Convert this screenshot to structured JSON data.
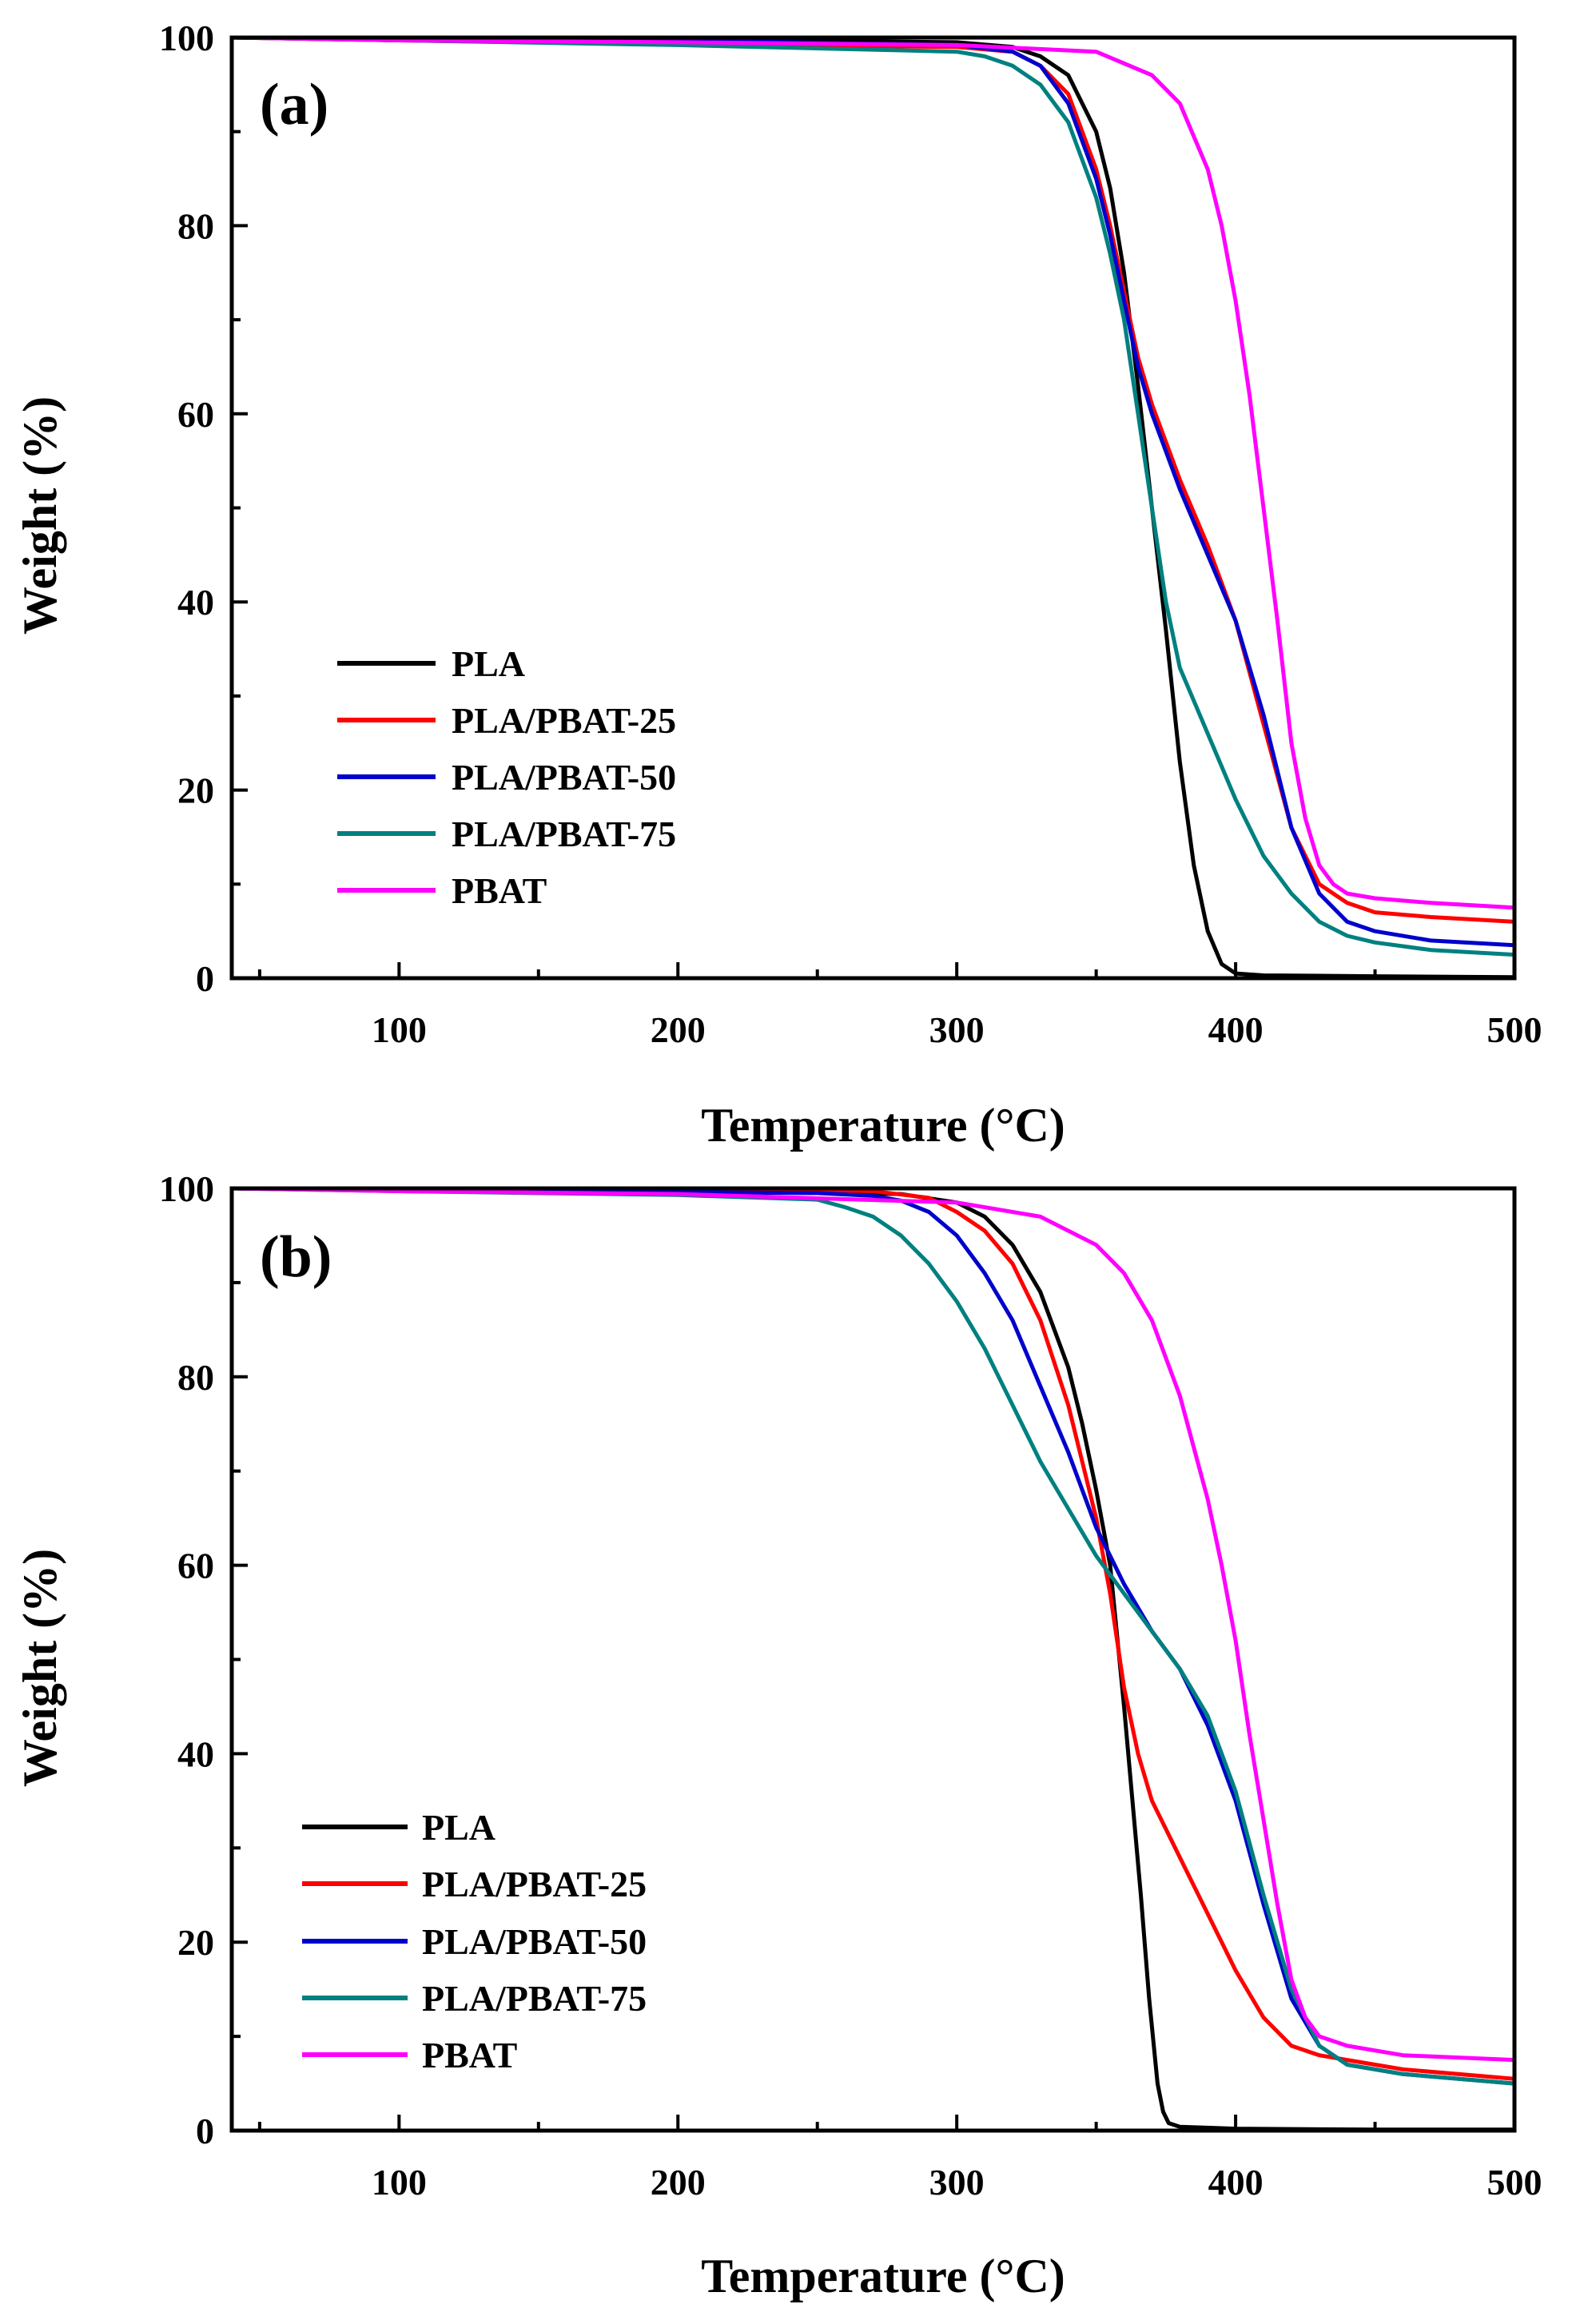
{
  "chart_data": [
    {
      "type": "line",
      "panel_label": "(a)",
      "xlabel": "Temperature (°C)",
      "ylabel": "Weight (%)",
      "xlim": [
        40,
        500
      ],
      "ylim": [
        0,
        100
      ],
      "xticks": [
        100,
        200,
        300,
        400,
        500
      ],
      "yticks": [
        0,
        20,
        40,
        60,
        80,
        100
      ],
      "grid": false,
      "legend_position": "lower-left",
      "series": [
        {
          "name": "PLA",
          "color": "#000000",
          "x": [
            40,
            100,
            200,
            300,
            320,
            330,
            340,
            350,
            355,
            360,
            365,
            370,
            375,
            380,
            385,
            390,
            395,
            400,
            410,
            450,
            500
          ],
          "y": [
            100,
            99.9,
            99.8,
            99.5,
            99,
            98,
            96,
            90,
            84,
            75,
            63,
            50,
            37,
            23,
            12,
            5,
            1.5,
            0.5,
            0.3,
            0.2,
            0.1
          ]
        },
        {
          "name": "PLA/PBAT-25",
          "color": "#ff0000",
          "x": [
            40,
            100,
            200,
            300,
            320,
            330,
            340,
            350,
            355,
            360,
            365,
            370,
            375,
            380,
            390,
            400,
            410,
            420,
            430,
            440,
            450,
            470,
            500
          ],
          "y": [
            100,
            99.7,
            99.3,
            99,
            98.5,
            97,
            94,
            86,
            80,
            73,
            66,
            61,
            57,
            53,
            46,
            38,
            27,
            16,
            10,
            8,
            7,
            6.5,
            6
          ]
        },
        {
          "name": "PLA/PBAT-50",
          "color": "#0000cc",
          "x": [
            40,
            100,
            200,
            300,
            320,
            330,
            340,
            350,
            355,
            360,
            365,
            370,
            375,
            380,
            390,
            400,
            410,
            420,
            430,
            440,
            450,
            470,
            500
          ],
          "y": [
            100,
            99.9,
            99.7,
            99.2,
            98.5,
            97,
            93,
            85,
            79,
            72,
            65,
            60,
            56,
            52,
            45,
            38,
            28,
            16,
            9,
            6,
            5,
            4,
            3.5
          ]
        },
        {
          "name": "PLA/PBAT-75",
          "color": "#008080",
          "x": [
            40,
            100,
            200,
            300,
            310,
            320,
            330,
            340,
            350,
            355,
            360,
            365,
            370,
            375,
            380,
            390,
            400,
            410,
            420,
            430,
            440,
            450,
            470,
            500
          ],
          "y": [
            100,
            99.7,
            99.2,
            98.5,
            98,
            97,
            95,
            91,
            83,
            77,
            70,
            60,
            50,
            40,
            33,
            26,
            19,
            13,
            9,
            6,
            4.5,
            3.8,
            3,
            2.5
          ]
        },
        {
          "name": "PBAT",
          "color": "#ff00ff",
          "x": [
            40,
            100,
            200,
            300,
            350,
            370,
            380,
            390,
            395,
            400,
            405,
            410,
            415,
            420,
            425,
            430,
            435,
            440,
            450,
            470,
            500
          ],
          "y": [
            100,
            99.7,
            99.5,
            99.2,
            98.5,
            96,
            93,
            86,
            80,
            72,
            62,
            50,
            38,
            25,
            17,
            12,
            10,
            9,
            8.5,
            8,
            7.5
          ]
        }
      ]
    },
    {
      "type": "line",
      "panel_label": "(b)",
      "xlabel": "Temperature (°C)",
      "ylabel": "Weight (%)",
      "xlim": [
        40,
        500
      ],
      "ylim": [
        0,
        100
      ],
      "xticks": [
        100,
        200,
        300,
        400,
        500
      ],
      "yticks": [
        0,
        20,
        40,
        60,
        80,
        100
      ],
      "grid": false,
      "legend_position": "lower-left",
      "series": [
        {
          "name": "PLA",
          "color": "#000000",
          "x": [
            40,
            100,
            200,
            280,
            300,
            310,
            320,
            330,
            340,
            345,
            350,
            355,
            360,
            363,
            366,
            369,
            372,
            374,
            376,
            380,
            400,
            450,
            500
          ],
          "y": [
            100,
            99.9,
            99.8,
            99.4,
            98.5,
            97,
            94,
            89,
            81,
            75,
            68,
            60,
            45,
            35,
            25,
            14,
            5,
            2,
            0.8,
            0.4,
            0.2,
            0.1,
            0.1
          ]
        },
        {
          "name": "PLA/PBAT-25",
          "color": "#ff0000",
          "x": [
            40,
            100,
            200,
            250,
            270,
            290,
            300,
            310,
            320,
            330,
            340,
            350,
            355,
            360,
            365,
            370,
            380,
            390,
            400,
            410,
            420,
            430,
            440,
            460,
            500
          ],
          "y": [
            100,
            99.8,
            99.8,
            99.8,
            99.7,
            99,
            97.5,
            95.5,
            92,
            86,
            77,
            65,
            57,
            47,
            40,
            35,
            29,
            23,
            17,
            12,
            9,
            8,
            7.5,
            6.5,
            5.5
          ]
        },
        {
          "name": "PLA/PBAT-50",
          "color": "#0000cc",
          "x": [
            40,
            100,
            200,
            250,
            270,
            280,
            290,
            300,
            310,
            320,
            330,
            340,
            350,
            360,
            370,
            380,
            390,
            400,
            410,
            420,
            430,
            440,
            460,
            500
          ],
          "y": [
            100,
            99.8,
            99.6,
            99.5,
            99.2,
            98.7,
            97.5,
            95,
            91,
            86,
            79,
            72,
            64,
            58,
            53,
            49,
            43,
            35,
            24,
            14,
            9,
            7,
            6,
            5
          ]
        },
        {
          "name": "PLA/PBAT-75",
          "color": "#008080",
          "x": [
            40,
            100,
            200,
            250,
            260,
            270,
            280,
            290,
            300,
            310,
            320,
            330,
            340,
            350,
            360,
            370,
            380,
            390,
            400,
            410,
            420,
            430,
            440,
            460,
            500
          ],
          "y": [
            100,
            99.7,
            99.3,
            98.8,
            98,
            97,
            95,
            92,
            88,
            83,
            77,
            71,
            66,
            61,
            57,
            53,
            49,
            44,
            36,
            25,
            15,
            9,
            7,
            6,
            5
          ]
        },
        {
          "name": "PBAT",
          "color": "#ff00ff",
          "x": [
            40,
            100,
            200,
            300,
            330,
            350,
            360,
            370,
            380,
            390,
            395,
            400,
            405,
            410,
            415,
            420,
            425,
            430,
            440,
            460,
            500
          ],
          "y": [
            100,
            99.7,
            99.4,
            98.5,
            97,
            94,
            91,
            86,
            78,
            67,
            60,
            52,
            42,
            33,
            24,
            16,
            12,
            10,
            9,
            8,
            7.5
          ]
        }
      ]
    }
  ]
}
